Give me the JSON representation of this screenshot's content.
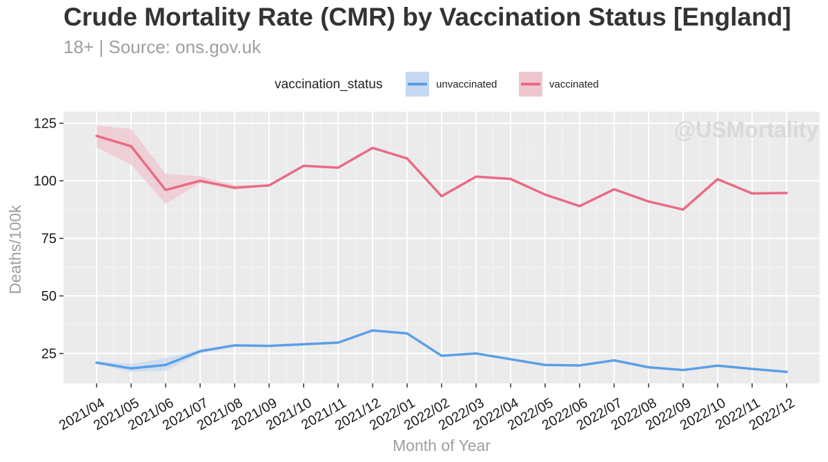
{
  "chart_data": {
    "type": "line",
    "title": "Crude Mortality Rate (CMR) by Vaccination Status [England]",
    "subtitle": "18+ | Source: ons.gov.uk",
    "xlabel": "Month of Year",
    "ylabel": "Deaths/100k",
    "watermark": "@USMortality",
    "legend_title": "vaccination_status",
    "legend_position": "top",
    "grid": true,
    "ylim": [
      12,
      130
    ],
    "yticks": [
      25,
      50,
      75,
      100,
      125
    ],
    "categories": [
      "2021/04",
      "2021/05",
      "2021/06",
      "2021/07",
      "2021/08",
      "2021/09",
      "2021/10",
      "2021/11",
      "2021/12",
      "2022/01",
      "2022/02",
      "2022/03",
      "2022/04",
      "2022/05",
      "2022/06",
      "2022/07",
      "2022/08",
      "2022/09",
      "2022/10",
      "2022/11",
      "2022/12"
    ],
    "series": [
      {
        "name": "unvaccinated",
        "color": "#5b9ee8",
        "band_color": "#c5d9f0",
        "values": [
          21,
          18.5,
          20,
          26,
          28.5,
          28.3,
          29,
          29.7,
          35,
          33.7,
          24,
          25,
          22.5,
          20,
          19.8,
          22,
          19,
          17.8,
          19.7,
          18.3,
          17
        ],
        "lower": [
          20.5,
          17,
          17.5,
          25,
          28,
          28,
          29,
          29.7,
          35,
          33.7,
          24,
          25,
          22.5,
          20,
          19.8,
          22,
          19,
          17.8,
          19.7,
          18.3,
          17
        ],
        "upper": [
          21.7,
          20.5,
          23,
          26.5,
          29,
          28.6,
          29,
          29.7,
          35,
          33.7,
          24,
          25,
          22.5,
          20,
          19.8,
          22,
          19,
          17.8,
          19.7,
          18.3,
          17
        ]
      },
      {
        "name": "vaccinated",
        "color": "#ea6a83",
        "band_color": "#efc6ce",
        "values": [
          119.5,
          115,
          96,
          100,
          97,
          98,
          106.5,
          105.7,
          114.3,
          109.7,
          93.3,
          101.8,
          100.8,
          94,
          89,
          96.3,
          91,
          87.5,
          100.7,
          94.5,
          94.7
        ],
        "lower": [
          114.5,
          107,
          90,
          99,
          96,
          98,
          106.5,
          105.7,
          114.3,
          109.7,
          93.3,
          101.8,
          100.8,
          94,
          89,
          96.3,
          91,
          87.5,
          100.7,
          94.5,
          94.7
        ],
        "upper": [
          124,
          122.5,
          103,
          102,
          98,
          98,
          106.5,
          105.7,
          114.3,
          109.7,
          93.3,
          101.8,
          100.8,
          94,
          89,
          96.3,
          91,
          87.5,
          100.7,
          94.5,
          94.7
        ]
      }
    ]
  }
}
